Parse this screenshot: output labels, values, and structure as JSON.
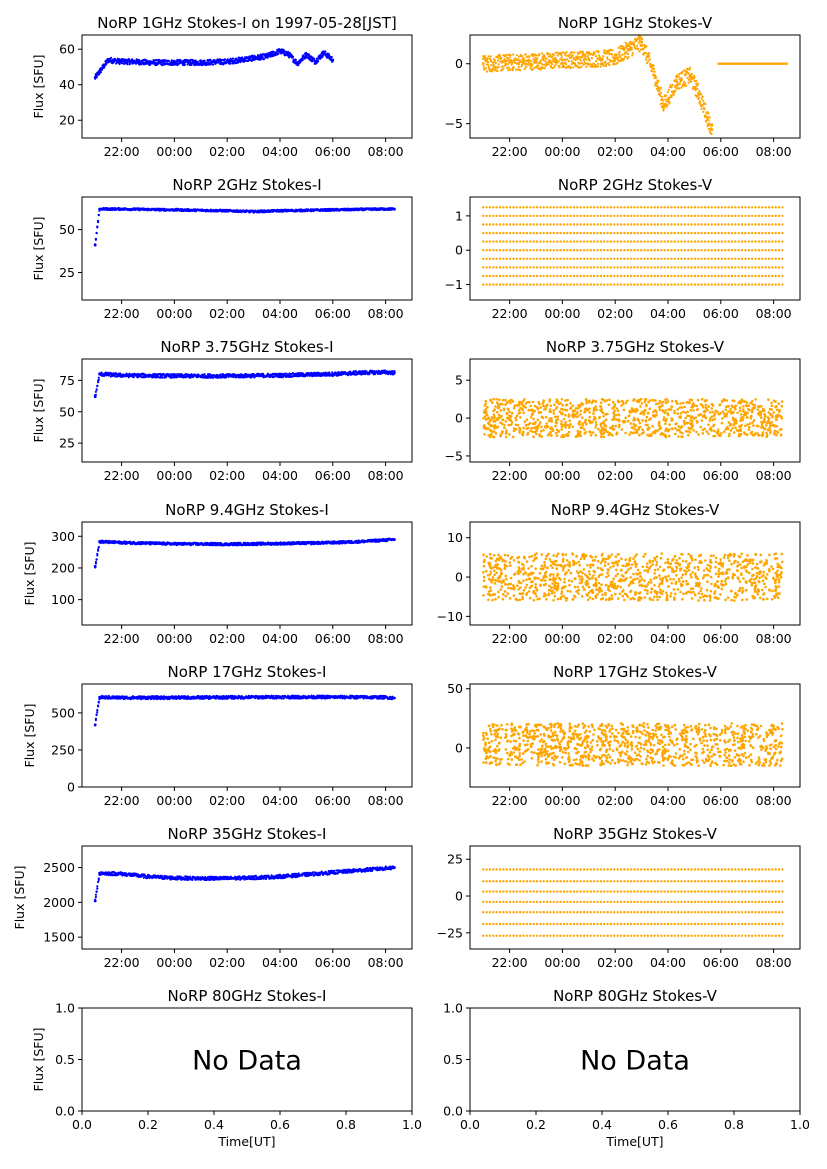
{
  "colors": {
    "stokes_i": "#0000ff",
    "stokes_v": "#ffa500",
    "axes": "#000000",
    "background": "#ffffff"
  },
  "chart_data": [
    {
      "type": "scatter",
      "title": "NoRP 1GHz Stokes-I on 1997-05-28[JST]",
      "ylabel": "Flux [SFU]",
      "xlabel": "",
      "color": "#0000ff",
      "xlim": [
        "20:30",
        "09:00"
      ],
      "xticks": [
        "22:00",
        "00:00",
        "02:00",
        "04:00",
        "06:00",
        "08:00"
      ],
      "ylim": [
        10,
        68
      ],
      "yticks": [
        20,
        40,
        60
      ],
      "ytick_labels": [
        "20",
        "40",
        "60"
      ],
      "x": [
        "21:00",
        "21:30",
        "22:00",
        "22:30",
        "23:00",
        "00:00",
        "01:00",
        "02:00",
        "02:30",
        "03:00",
        "03:30",
        "04:00",
        "04:20",
        "04:40",
        "05:00",
        "05:20",
        "05:40",
        "06:00"
      ],
      "y": [
        44,
        54,
        53,
        53,
        52.5,
        52.5,
        52.5,
        53,
        54,
        55,
        56,
        59,
        57,
        52,
        57,
        53,
        58,
        54
      ],
      "spread": 1.5
    },
    {
      "type": "scatter",
      "title": "NoRP 1GHz Stokes-V",
      "ylabel": "",
      "xlabel": "",
      "color": "#ffa500",
      "xlim": [
        "20:30",
        "09:00"
      ],
      "xticks": [
        "22:00",
        "00:00",
        "02:00",
        "04:00",
        "06:00",
        "08:00"
      ],
      "ylim": [
        -6.2,
        2.4
      ],
      "yticks": [
        -5,
        0
      ],
      "ytick_labels": [
        "−5",
        "0"
      ],
      "x": [
        "21:00",
        "22:00",
        "23:00",
        "00:00",
        "01:00",
        "02:00",
        "02:30",
        "03:00",
        "03:30",
        "03:50",
        "04:20",
        "04:50",
        "05:10",
        "05:30",
        "05:40"
      ],
      "y": [
        0,
        0.1,
        0.2,
        0.3,
        0.4,
        0.5,
        1.2,
        1.8,
        -1.0,
        -3.5,
        -1.5,
        -1.0,
        -2.5,
        -4.5,
        -5.5
      ],
      "spread": 0.7,
      "flat_segment": {
        "from": "05:55",
        "to": "08:30",
        "value": 0
      }
    },
    {
      "type": "scatter",
      "title": "NoRP 2GHz Stokes-I",
      "ylabel": "Flux [SFU]",
      "xlabel": "",
      "color": "#0000ff",
      "xlim": [
        "20:30",
        "09:00"
      ],
      "xticks": [
        "22:00",
        "00:00",
        "02:00",
        "04:00",
        "06:00",
        "08:00"
      ],
      "ylim": [
        9,
        69
      ],
      "yticks": [
        25,
        50
      ],
      "ytick_labels": [
        "25",
        "50"
      ],
      "x": [
        "21:00",
        "21:10",
        "22:00",
        "00:00",
        "02:00",
        "03:00",
        "04:00",
        "06:00",
        "08:00",
        "08:20"
      ],
      "y": [
        41,
        62,
        62,
        61.5,
        61,
        60.5,
        61,
        61.5,
        62,
        62
      ],
      "spread": 0.6
    },
    {
      "type": "scatter",
      "title": "NoRP 2GHz Stokes-V",
      "ylabel": "",
      "xlabel": "",
      "color": "#ffa500",
      "xlim": [
        "20:30",
        "09:00"
      ],
      "xticks": [
        "22:00",
        "00:00",
        "02:00",
        "04:00",
        "06:00",
        "08:00"
      ],
      "ylim": [
        -1.45,
        1.55
      ],
      "yticks": [
        -1,
        0,
        1
      ],
      "ytick_labels": [
        "−1",
        "0",
        "1"
      ],
      "bands": [
        -1.0,
        -0.75,
        -0.5,
        -0.25,
        0,
        0.25,
        0.5,
        0.75,
        1.0,
        1.25
      ],
      "band_range": [
        "21:00",
        "08:20"
      ]
    },
    {
      "type": "scatter",
      "title": "NoRP 3.75GHz Stokes-I",
      "ylabel": "Flux [SFU]",
      "xlabel": "",
      "color": "#0000ff",
      "xlim": [
        "20:30",
        "09:00"
      ],
      "xticks": [
        "22:00",
        "00:00",
        "02:00",
        "04:00",
        "06:00",
        "08:00"
      ],
      "ylim": [
        10,
        92
      ],
      "yticks": [
        25,
        50,
        75
      ],
      "ytick_labels": [
        "25",
        "50",
        "75"
      ],
      "x": [
        "21:00",
        "21:10",
        "22:00",
        "00:00",
        "02:00",
        "04:00",
        "06:00",
        "07:00",
        "08:00",
        "08:20"
      ],
      "y": [
        62,
        80,
        79,
        78.5,
        78.5,
        79,
        80,
        81,
        81.5,
        81
      ],
      "spread": 1.5
    },
    {
      "type": "scatter",
      "title": "NoRP 3.75GHz Stokes-V",
      "ylabel": "",
      "xlabel": "",
      "color": "#ffa500",
      "xlim": [
        "20:30",
        "09:00"
      ],
      "xticks": [
        "22:00",
        "00:00",
        "02:00",
        "04:00",
        "06:00",
        "08:00"
      ],
      "ylim": [
        -5.8,
        7.8
      ],
      "yticks": [
        -5,
        0,
        5
      ],
      "ytick_labels": [
        "−5",
        "0",
        "5"
      ],
      "noise_range": [
        "21:00",
        "08:20"
      ],
      "noise_center": 0,
      "noise_halfwidth": 2.5
    },
    {
      "type": "scatter",
      "title": "NoRP 9.4GHz Stokes-I",
      "ylabel": "Flux [SFU]",
      "xlabel": "",
      "color": "#0000ff",
      "xlim": [
        "20:30",
        "09:00"
      ],
      "xticks": [
        "22:00",
        "00:00",
        "02:00",
        "04:00",
        "06:00",
        "08:00"
      ],
      "ylim": [
        20,
        345
      ],
      "yticks": [
        100,
        200,
        300
      ],
      "ytick_labels": [
        "100",
        "200",
        "300"
      ],
      "x": [
        "21:00",
        "21:10",
        "22:00",
        "00:00",
        "02:00",
        "04:00",
        "06:00",
        "07:00",
        "08:00",
        "08:20"
      ],
      "y": [
        205,
        283,
        280,
        276,
        275,
        277,
        280,
        283,
        288,
        290
      ],
      "spread": 4
    },
    {
      "type": "scatter",
      "title": "NoRP 9.4GHz Stokes-V",
      "ylabel": "",
      "xlabel": "",
      "color": "#ffa500",
      "xlim": [
        "20:30",
        "09:00"
      ],
      "xticks": [
        "22:00",
        "00:00",
        "02:00",
        "04:00",
        "06:00",
        "08:00"
      ],
      "ylim": [
        -12.2,
        14
      ],
      "yticks": [
        -10,
        0,
        10
      ],
      "ytick_labels": [
        "−10",
        "0",
        "10"
      ],
      "noise_range": [
        "21:00",
        "08:20"
      ],
      "noise_center": 0,
      "noise_halfwidth": 6
    },
    {
      "type": "scatter",
      "title": "NoRP 17GHz Stokes-I",
      "ylabel": "Flux [SFU]",
      "xlabel": "",
      "color": "#0000ff",
      "xlim": [
        "20:30",
        "09:00"
      ],
      "xticks": [
        "22:00",
        "00:00",
        "02:00",
        "04:00",
        "06:00",
        "08:00"
      ],
      "ylim": [
        0,
        695
      ],
      "yticks": [
        0,
        250,
        500
      ],
      "ytick_labels": [
        "0",
        "250",
        "500"
      ],
      "x": [
        "21:00",
        "21:10",
        "22:00",
        "00:00",
        "02:00",
        "04:00",
        "06:00",
        "08:00",
        "08:20"
      ],
      "y": [
        420,
        605,
        603,
        603,
        605,
        607,
        607,
        605,
        600
      ],
      "spread": 10
    },
    {
      "type": "scatter",
      "title": "NoRP 17GHz Stokes-V",
      "ylabel": "",
      "xlabel": "",
      "color": "#ffa500",
      "xlim": [
        "20:30",
        "09:00"
      ],
      "xticks": [
        "22:00",
        "00:00",
        "02:00",
        "04:00",
        "06:00",
        "08:00"
      ],
      "ylim": [
        -33,
        54
      ],
      "yticks": [
        0,
        50
      ],
      "ytick_labels": [
        "0",
        "50"
      ],
      "noise_range": [
        "21:00",
        "08:20"
      ],
      "noise_center": 3,
      "noise_halfwidth": 18
    },
    {
      "type": "scatter",
      "title": "NoRP 35GHz Stokes-I",
      "ylabel": "Flux [SFU]",
      "xlabel": "",
      "color": "#0000ff",
      "xlim": [
        "20:30",
        "09:00"
      ],
      "xticks": [
        "22:00",
        "00:00",
        "02:00",
        "04:00",
        "06:00",
        "08:00"
      ],
      "ylim": [
        1330,
        2810
      ],
      "yticks": [
        1500,
        2000,
        2500
      ],
      "ytick_labels": [
        "1500",
        "2000",
        "2500"
      ],
      "x": [
        "21:00",
        "21:10",
        "22:00",
        "23:00",
        "00:00",
        "01:00",
        "02:00",
        "03:00",
        "04:00",
        "05:00",
        "06:00",
        "07:00",
        "08:00",
        "08:20"
      ],
      "y": [
        2020,
        2420,
        2410,
        2370,
        2350,
        2345,
        2345,
        2355,
        2370,
        2400,
        2430,
        2460,
        2490,
        2500
      ],
      "spread": 25
    },
    {
      "type": "scatter",
      "title": "NoRP 35GHz Stokes-V",
      "ylabel": "",
      "xlabel": "",
      "color": "#ffa500",
      "xlim": [
        "20:30",
        "09:00"
      ],
      "xticks": [
        "22:00",
        "00:00",
        "02:00",
        "04:00",
        "06:00",
        "08:00"
      ],
      "ylim": [
        -36,
        34
      ],
      "yticks": [
        -25,
        0,
        25
      ],
      "ytick_labels": [
        "−25",
        "0",
        "25"
      ],
      "bands": [
        -27,
        -19,
        -11,
        -4,
        3,
        10,
        18
      ],
      "band_range": [
        "21:00",
        "08:20"
      ]
    },
    {
      "type": "scatter",
      "title": "NoRP 80GHz Stokes-I",
      "ylabel": "Flux [SFU]",
      "xlabel": "Time[UT]",
      "color": "#0000ff",
      "xlim": [
        0,
        1
      ],
      "ylim": [
        0,
        1
      ],
      "xticks": [
        "0.0",
        "0.2",
        "0.4",
        "0.6",
        "0.8",
        "1.0"
      ],
      "yticks": [
        0,
        0.5,
        1
      ],
      "ytick_labels": [
        "0.0",
        "0.5",
        "1.0"
      ],
      "annotation": "No Data"
    },
    {
      "type": "scatter",
      "title": "NoRP 80GHz Stokes-V",
      "ylabel": "",
      "xlabel": "Time[UT]",
      "color": "#ffa500",
      "xlim": [
        0,
        1
      ],
      "ylim": [
        0,
        1
      ],
      "xticks": [
        "0.0",
        "0.2",
        "0.4",
        "0.6",
        "0.8",
        "1.0"
      ],
      "yticks": [
        0,
        0.5,
        1
      ],
      "ytick_labels": [
        "0.0",
        "0.5",
        "1.0"
      ],
      "annotation": "No Data"
    }
  ]
}
